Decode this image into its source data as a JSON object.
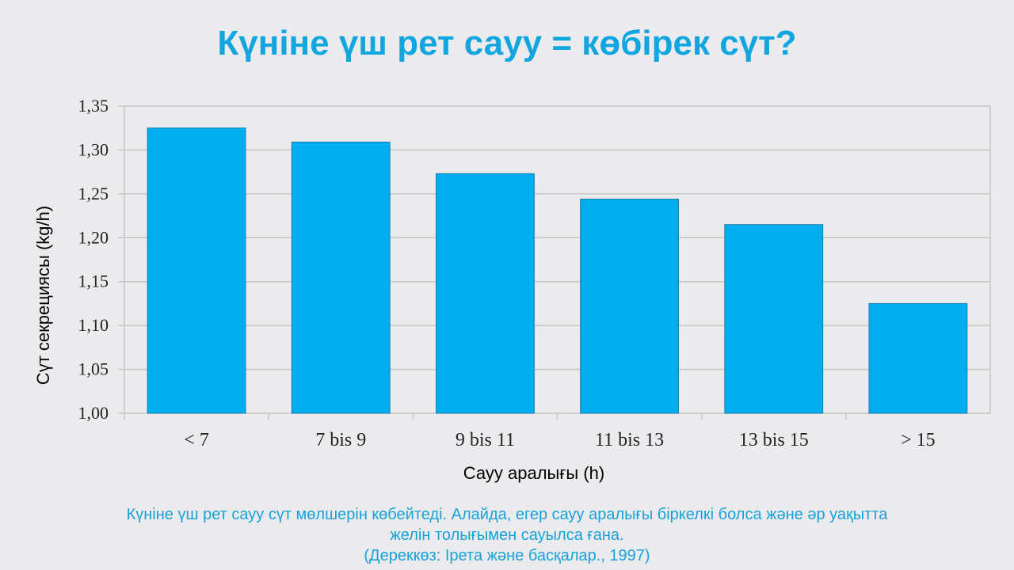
{
  "slide": {
    "title": "Күніне үш рет сауу = көбірек сүт?",
    "caption_line1": "Күніне үш рет сауу сүт мөлшерін көбейтеді. Алайда, егер сауу аралығы біркелкі болса және әр уақытта",
    "caption_line2": "желін толығымен сауылса ғана.",
    "caption_source": "(Дереккөз: Ірета және басқалар., 1997)"
  },
  "chart_data": {
    "type": "bar",
    "categories": [
      "< 7",
      "7 bis 9",
      "9 bis 11",
      "11 bis 13",
      "13 bis 15",
      "> 15"
    ],
    "values": [
      1.325,
      1.309,
      1.273,
      1.244,
      1.215,
      1.125
    ],
    "xlabel": "Сауу аралығы (h)",
    "ylabel": "Сүт секрециясы (kg/h)",
    "ylim": [
      1.0,
      1.35
    ],
    "yticks": [
      "1,00",
      "1,05",
      "1,10",
      "1,15",
      "1,20",
      "1,25",
      "1,30",
      "1,35"
    ],
    "grid": true,
    "bar_color": "#00adef"
  }
}
